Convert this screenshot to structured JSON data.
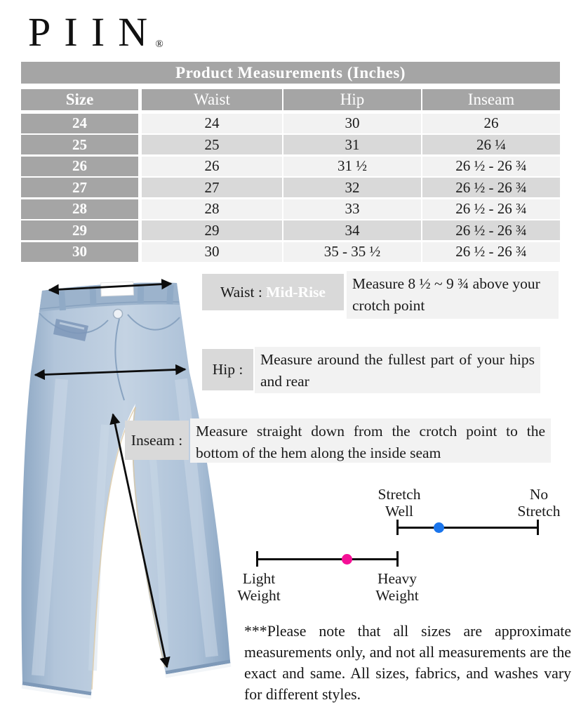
{
  "logo": {
    "brand": "PIIN",
    "registered": "®"
  },
  "table": {
    "title": "Product Measurements (Inches)",
    "columns": [
      "Size",
      "Waist",
      "Hip",
      "Inseam"
    ],
    "rows": [
      [
        "24",
        "24",
        "30",
        "26"
      ],
      [
        "25",
        "25",
        "31",
        "26 ¼"
      ],
      [
        "26",
        "26",
        "31 ½",
        "26 ½ - 26 ¾"
      ],
      [
        "27",
        "27",
        "32",
        "26 ½ - 26 ¾"
      ],
      [
        "28",
        "28",
        "33",
        "26 ½ - 26 ¾"
      ],
      [
        "29",
        "29",
        "34",
        "26 ½ - 26 ¾"
      ],
      [
        "30",
        "30",
        "35 - 35 ½",
        "26 ½ - 26 ¾"
      ]
    ]
  },
  "guides": {
    "waist": {
      "label": "Waist : ",
      "value": "Mid-Rise",
      "description": "Measure 8 ½ ~ 9 ¾ above your crotch point"
    },
    "hip": {
      "label": "Hip :",
      "description": "Measure around the fullest part of your hips and rear"
    },
    "inseam": {
      "label": "Inseam :",
      "description": "Measure straight down from the crotch point to the bottom of the hem along the inside seam"
    }
  },
  "scales": {
    "stretch": {
      "left_label": "Stretch Well",
      "right_label": "No Stretch",
      "value_fraction": 0.3,
      "dot_color": "#1a75ec"
    },
    "weight": {
      "left_label": "Light Weight",
      "right_label": "Heavy Weight",
      "value_fraction": 0.64,
      "dot_color": "#f50f96"
    }
  },
  "note": "***Please note that all sizes are approximate measurements only, and not all measurements are the exact and same.  All sizes, fabrics, and washes vary for different styles.",
  "colors": {
    "table_header_gray": "#a5a5a5",
    "row_light": "#f2f2f2",
    "row_dark": "#d9d9d9",
    "guide_label_gray": "#d9d9d9",
    "guide_desc_gray": "#f2f2f2",
    "stretch_dot_blue": "#1a75ec",
    "weight_dot_pink": "#f50f96"
  }
}
